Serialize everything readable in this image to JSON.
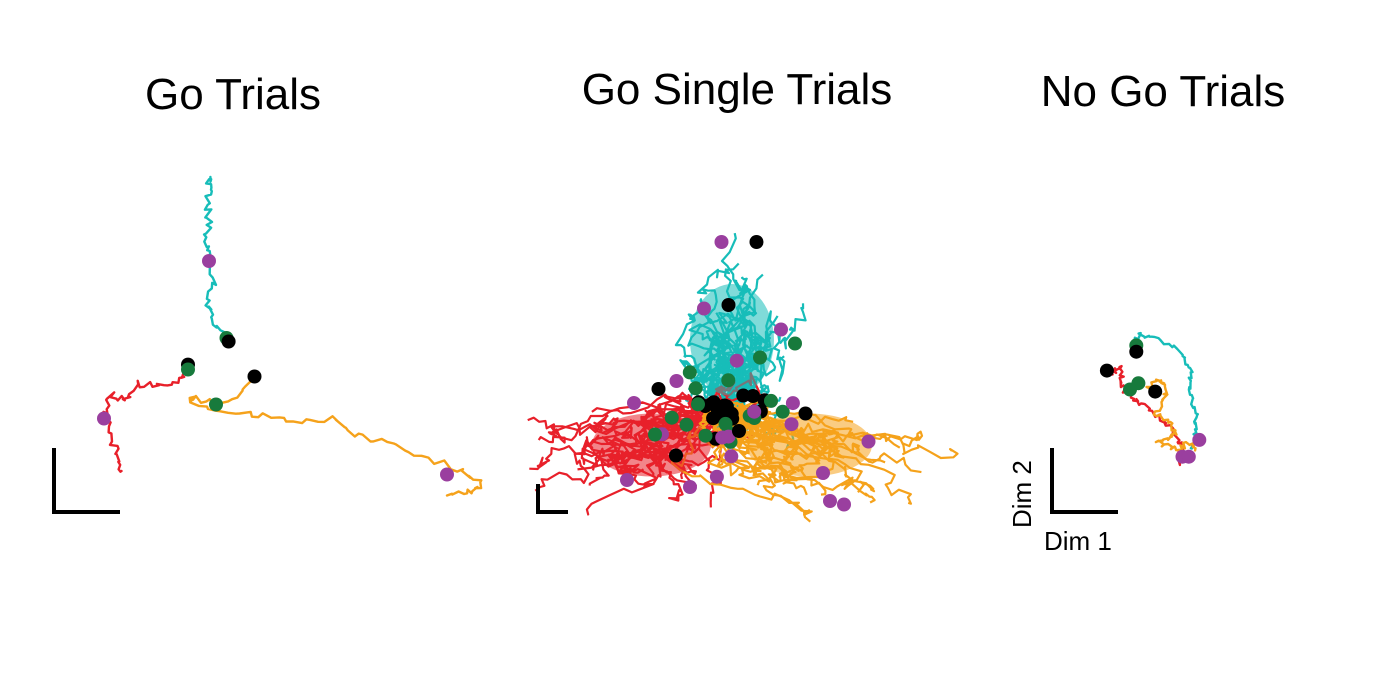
{
  "figure": {
    "colors": {
      "red": "#e8202a",
      "cyan": "#17bdb9",
      "orange": "#f5a21b",
      "black": "#000000",
      "green": "#177a3c",
      "purple": "#9a3f9f"
    }
  },
  "chart_data": [
    {
      "type": "scatter",
      "title": "Go Trials",
      "xlabel": "",
      "ylabel": "",
      "grid": false,
      "legend": "none",
      "series": [
        {
          "color": "red",
          "values": [
            [
              -0.1,
              0.15
            ],
            [
              -0.2,
              0.0
            ],
            [
              -0.5,
              -0.1
            ],
            [
              -0.8,
              -0.05
            ],
            [
              -1.0,
              -0.3
            ],
            [
              -1.2,
              -0.2
            ],
            [
              -1.3,
              -0.5
            ],
            [
              -1.2,
              -0.8
            ],
            [
              -1.1,
              -1.1
            ],
            [
              -1.05,
              -1.3
            ]
          ]
        },
        {
          "color": "cyan",
          "values": [
            [
              0.45,
              0.6
            ],
            [
              0.3,
              0.8
            ],
            [
              0.2,
              1.1
            ],
            [
              0.25,
              1.4
            ],
            [
              0.2,
              1.7
            ],
            [
              0.15,
              1.9
            ],
            [
              0.2,
              2.2
            ],
            [
              0.18,
              2.5
            ],
            [
              0.2,
              2.75
            ],
            [
              0.22,
              2.9
            ]
          ]
        },
        {
          "color": "orange",
          "values": [
            [
              0.85,
              0.05
            ],
            [
              0.65,
              -0.2
            ],
            [
              0.3,
              -0.35
            ],
            [
              0.0,
              -0.25
            ],
            [
              -0.05,
              -0.3
            ],
            [
              0.5,
              -0.45
            ],
            [
              1.0,
              -0.5
            ],
            [
              1.5,
              -0.6
            ],
            [
              2.0,
              -0.55
            ],
            [
              2.3,
              -0.8
            ],
            [
              2.8,
              -0.9
            ],
            [
              3.3,
              -1.1
            ],
            [
              3.8,
              -1.3
            ],
            [
              4.1,
              -1.5
            ],
            [
              3.9,
              -1.6
            ],
            [
              3.6,
              -1.65
            ]
          ]
        }
      ],
      "markers": [
        {
          "color": "purple",
          "point": [
            0.2,
            1.7
          ]
        },
        {
          "color": "green",
          "point": [
            0.45,
            0.6
          ]
        },
        {
          "color": "black",
          "point": [
            0.48,
            0.55
          ]
        },
        {
          "color": "black",
          "point": [
            -0.1,
            0.22
          ]
        },
        {
          "color": "green",
          "point": [
            -0.1,
            0.15
          ]
        },
        {
          "color": "purple",
          "point": [
            -1.3,
            -0.55
          ]
        },
        {
          "color": "black",
          "point": [
            0.85,
            0.05
          ]
        },
        {
          "color": "green",
          "point": [
            0.3,
            -0.35
          ]
        },
        {
          "color": "purple",
          "point": [
            3.6,
            -1.35
          ]
        }
      ]
    },
    {
      "type": "scatter",
      "title": "Go Single Trials",
      "xlabel": "",
      "ylabel": "",
      "grid": false,
      "legend": "none",
      "series": [
        {
          "color": "cyan",
          "name": ""
        },
        {
          "color": "red",
          "name": ""
        },
        {
          "color": "orange",
          "name": ""
        }
      ],
      "markers": [
        {
          "color": "black",
          "point": [
            0.55,
            2.4
          ]
        },
        {
          "color": "purple",
          "point": [
            0.05,
            2.4
          ]
        },
        {
          "color": "purple",
          "point": [
            -0.2,
            1.45
          ]
        },
        {
          "color": "black",
          "point": [
            0.15,
            1.5
          ]
        },
        {
          "color": "purple",
          "point": [
            0.9,
            1.15
          ]
        },
        {
          "color": "green",
          "point": [
            1.1,
            0.95
          ]
        },
        {
          "color": "purple",
          "point": [
            -1.2,
            0.1
          ]
        },
        {
          "color": "black",
          "point": [
            -0.85,
            0.3
          ]
        },
        {
          "color": "purple",
          "point": [
            -1.3,
            -1.0
          ]
        },
        {
          "color": "green",
          "point": [
            -0.9,
            -0.35
          ]
        },
        {
          "color": "black",
          "point": [
            -0.6,
            -0.65
          ]
        },
        {
          "color": "purple",
          "point": [
            -0.4,
            -1.1
          ]
        },
        {
          "color": "black",
          "point": [
            1.25,
            -0.05
          ]
        },
        {
          "color": "purple",
          "point": [
            2.15,
            -0.45
          ]
        },
        {
          "color": "purple",
          "point": [
            1.5,
            -0.9
          ]
        },
        {
          "color": "purple",
          "point": [
            1.6,
            -1.3
          ]
        },
        {
          "color": "purple",
          "point": [
            1.8,
            -1.35
          ]
        },
        {
          "color": "black",
          "point": [
            0.3,
            -0.3
          ]
        },
        {
          "color": "black",
          "point": [
            0.5,
            0.2
          ]
        },
        {
          "color": "green",
          "point": [
            0.6,
            0.75
          ]
        }
      ]
    },
    {
      "type": "scatter",
      "title": "No Go Trials",
      "xlabel": "Dim 1",
      "ylabel": "Dim 2",
      "grid": false,
      "legend": "none",
      "series": [
        {
          "color": "cyan",
          "values": [
            [
              0.1,
              1.3
            ],
            [
              0.2,
              1.55
            ],
            [
              0.5,
              1.5
            ],
            [
              1.0,
              1.3
            ],
            [
              1.3,
              1.0
            ],
            [
              1.45,
              0.7
            ],
            [
              1.4,
              0.3
            ],
            [
              1.5,
              0.0
            ],
            [
              1.6,
              -0.4
            ],
            [
              1.55,
              -0.7
            ],
            [
              1.6,
              -1.0
            ],
            [
              1.45,
              -1.15
            ]
          ]
        },
        {
          "color": "red",
          "values": [
            [
              -0.55,
              0.7
            ],
            [
              -0.4,
              0.65
            ],
            [
              -0.25,
              0.8
            ],
            [
              -0.2,
              0.55
            ],
            [
              -0.15,
              0.25
            ],
            [
              0.0,
              0.1
            ],
            [
              0.3,
              -0.1
            ],
            [
              0.7,
              -0.4
            ],
            [
              1.0,
              -0.7
            ],
            [
              1.2,
              -1.0
            ],
            [
              1.3,
              -1.3
            ],
            [
              1.2,
              -1.5
            ],
            [
              1.1,
              -1.25
            ],
            [
              1.35,
              -1.4
            ]
          ]
        },
        {
          "color": "orange",
          "values": [
            [
              0.6,
              0.15
            ],
            [
              0.45,
              0.3
            ],
            [
              0.7,
              0.5
            ],
            [
              0.9,
              0.3
            ],
            [
              0.8,
              0.0
            ],
            [
              0.6,
              -0.3
            ],
            [
              0.9,
              -0.5
            ],
            [
              1.1,
              -0.75
            ],
            [
              0.9,
              -0.9
            ],
            [
              0.6,
              -1.0
            ],
            [
              0.9,
              -1.1
            ],
            [
              1.2,
              -1.15
            ],
            [
              1.45,
              -1.0
            ],
            [
              1.55,
              -1.2
            ]
          ]
        }
      ],
      "markers": [
        {
          "color": "green",
          "point": [
            0.15,
            1.3
          ]
        },
        {
          "color": "black",
          "point": [
            0.15,
            1.15
          ]
        },
        {
          "color": "black",
          "point": [
            -0.55,
            0.7
          ]
        },
        {
          "color": "green",
          "point": [
            0.2,
            0.4
          ]
        },
        {
          "color": "green",
          "point": [
            0.0,
            0.25
          ]
        },
        {
          "color": "black",
          "point": [
            0.6,
            0.2
          ]
        },
        {
          "color": "purple",
          "point": [
            1.65,
            -0.95
          ]
        },
        {
          "color": "purple",
          "point": [
            1.25,
            -1.35
          ]
        },
        {
          "color": "purple",
          "point": [
            1.4,
            -1.35
          ]
        }
      ]
    }
  ]
}
